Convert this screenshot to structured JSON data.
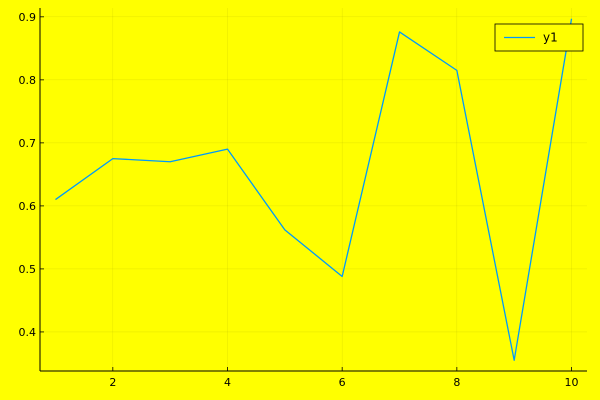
{
  "chart_data": {
    "type": "line",
    "x": [
      1,
      2,
      3,
      4,
      5,
      6,
      7,
      8,
      9,
      10
    ],
    "series": [
      {
        "name": "y1",
        "color": "#009af9",
        "values": [
          0.61,
          0.675,
          0.67,
          0.69,
          0.562,
          0.488,
          0.876,
          0.815,
          0.355,
          0.897
        ]
      }
    ],
    "xticks": [
      2,
      4,
      6,
      8,
      10
    ],
    "yticks": [
      0.4,
      0.5,
      0.6,
      0.7,
      0.8,
      0.9
    ],
    "xlim": [
      0.73,
      10.27
    ],
    "ylim": [
      0.338,
      0.914
    ],
    "grid": true,
    "legend_position": "top-right",
    "background_color": "#ffff00",
    "title": "",
    "xlabel": "",
    "ylabel": ""
  }
}
